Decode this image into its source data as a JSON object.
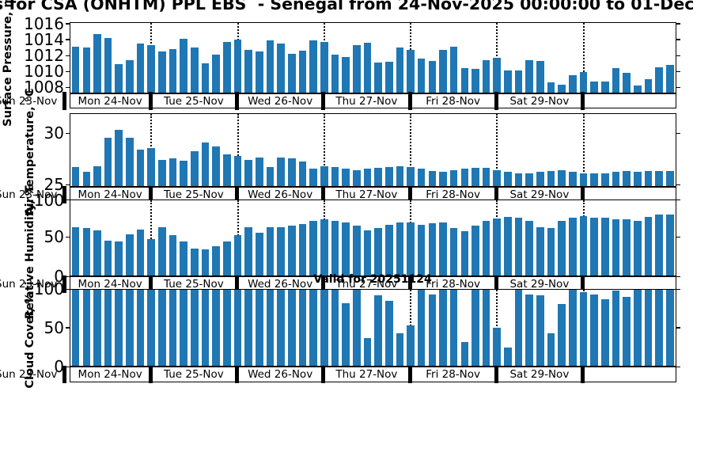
{
  "title": "s for CSA (ONHTM) PPL EBS  - Senegal from 24-Nov-2025 00:00:00 to 01-Dec",
  "watermark": "Valid for 20251124",
  "colors": {
    "bar": "#1f77b4",
    "axis": "#000000",
    "background": "#ffffff"
  },
  "time_axis": {
    "left_outside_label": "Sun 23-Nov",
    "day_labels": [
      "Mon 24-Nov",
      "Tue 25-Nov",
      "Wed 26-Nov",
      "Thu 27-Nov",
      "Fri 28-Nov",
      "Sat 29-Nov",
      ""
    ],
    "step_hours": 3,
    "bars_per_day": 8,
    "range_start": "24-Nov-2025 00:00:00",
    "range_end": "01-Dec"
  },
  "chart_data": [
    {
      "type": "bar",
      "ylabel": "Surface Pressure, mb",
      "yticks": [
        1008,
        1010,
        1012,
        1014,
        1016
      ],
      "ylim": [
        1007.3,
        1016.2
      ],
      "grid": "vertical-dotted-daily",
      "legend": "none",
      "values": [
        1013.1,
        1013.0,
        1014.7,
        1014.2,
        1010.9,
        1011.4,
        1013.5,
        1013.3,
        1012.5,
        1012.8,
        1014.1,
        1013.0,
        1011.0,
        1012.1,
        1013.7,
        1014.0,
        1012.7,
        1012.5,
        1013.9,
        1013.5,
        1012.2,
        1012.6,
        1013.9,
        1013.7,
        1012.1,
        1011.8,
        1013.3,
        1013.6,
        1011.1,
        1011.2,
        1013.0,
        1012.7,
        1011.6,
        1011.3,
        1012.7,
        1013.1,
        1010.4,
        1010.3,
        1011.4,
        1011.7,
        1010.1,
        1010.1,
        1011.4,
        1011.3,
        1008.6,
        1008.3,
        1009.5,
        1009.9,
        1008.7,
        1008.7,
        1010.4,
        1009.8,
        1008.2,
        1009.0,
        1010.5,
        1010.8
      ]
    },
    {
      "type": "bar",
      "ylabel": "Air Temperature, °C",
      "yticks": [
        25,
        30
      ],
      "ylim": [
        24.8,
        31.95
      ],
      "grid": "vertical-dotted-daily",
      "legend": "none",
      "values": [
        26.7,
        26.2,
        26.8,
        29.5,
        30.3,
        29.5,
        28.4,
        28.5,
        27.4,
        27.5,
        27.3,
        28.2,
        29.1,
        28.7,
        27.9,
        27.8,
        27.4,
        27.6,
        26.7,
        27.6,
        27.5,
        27.2,
        26.5,
        26.8,
        26.7,
        26.5,
        26.4,
        26.5,
        26.6,
        26.7,
        26.8,
        26.7,
        26.5,
        26.3,
        26.2,
        26.4,
        26.5,
        26.6,
        26.6,
        26.4,
        26.2,
        26.1,
        26.1,
        26.2,
        26.3,
        26.4,
        26.2,
        26.1,
        26.1,
        26.1,
        26.2,
        26.3,
        26.2,
        26.3,
        26.3,
        26.3
      ]
    },
    {
      "type": "bar",
      "ylabel": "Relative Humidity, %",
      "yticks": [
        0,
        50,
        100
      ],
      "ylim": [
        0,
        97.3
      ],
      "grid": "vertical-dotted-daily",
      "legend": "none",
      "values": [
        62,
        61,
        58,
        45,
        44,
        53,
        59,
        47,
        62,
        52,
        44,
        35,
        34,
        38,
        44,
        52,
        62,
        55,
        62,
        62,
        64,
        66,
        70,
        72,
        70,
        68,
        64,
        58,
        61,
        65,
        68,
        68,
        65,
        67,
        68,
        61,
        57,
        64,
        70,
        73,
        75,
        74,
        70,
        62,
        61,
        70,
        74,
        76,
        74,
        74,
        72,
        72,
        70,
        75,
        78,
        78
      ]
    },
    {
      "type": "bar",
      "ylabel": "Cloud Cover, %",
      "yticks": [
        0,
        50,
        100
      ],
      "ylim": [
        0,
        100
      ],
      "grid": "vertical-dotted-daily",
      "legend": "none",
      "values": [
        100,
        100,
        100,
        100,
        100,
        100,
        100,
        100,
        100,
        100,
        100,
        100,
        100,
        100,
        100,
        100,
        100,
        100,
        100,
        100,
        100,
        100,
        100,
        100,
        100,
        81,
        100,
        36,
        91,
        84,
        42,
        53,
        100,
        92,
        100,
        100,
        31,
        100,
        100,
        49,
        24,
        100,
        92,
        91,
        42,
        80,
        100,
        95,
        92,
        86,
        97,
        89,
        100,
        100,
        100,
        100
      ]
    }
  ]
}
